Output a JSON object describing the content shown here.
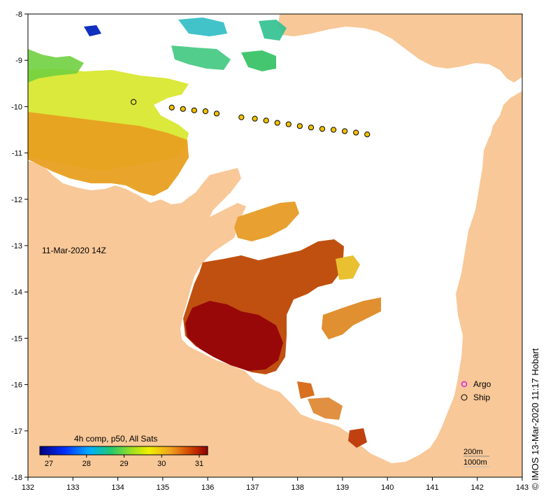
{
  "map": {
    "timestamp_label": "11-Mar-2020 14Z",
    "credit": "© IMOS 13-Mar-2020 11:17 Hobart",
    "lon_ticks": [
      "132",
      "133",
      "134",
      "135",
      "136",
      "137",
      "138",
      "139",
      "140",
      "141",
      "142",
      "143"
    ],
    "lat_ticks": [
      "-8",
      "-9",
      "-10",
      "-11",
      "-12",
      "-13",
      "-14",
      "-15",
      "-16",
      "-17",
      "-18"
    ],
    "lon_range": [
      132,
      143
    ],
    "lat_range": [
      -18,
      -8
    ]
  },
  "colorbar": {
    "title": "4h comp, p50, All Sats",
    "ticks": [
      "27",
      "28",
      "29",
      "30",
      "31"
    ]
  },
  "legend": {
    "argo_label": "Argo",
    "ship_label": "Ship",
    "argo_color": "#e020e0",
    "ship_color": "#f0c000"
  },
  "scale": {
    "contour_1": "200m",
    "contour_2": "1000m"
  },
  "colors": {
    "land": "#f8c898",
    "sea": "#ffffff"
  },
  "ship_track": [
    {
      "lon": 134.35,
      "lat": -9.9
    },
    {
      "lon": 135.2,
      "lat": -10.02
    },
    {
      "lon": 135.45,
      "lat": -10.05
    },
    {
      "lon": 135.7,
      "lat": -10.08
    },
    {
      "lon": 135.95,
      "lat": -10.1
    },
    {
      "lon": 136.2,
      "lat": -10.15
    },
    {
      "lon": 136.75,
      "lat": -10.23
    },
    {
      "lon": 137.05,
      "lat": -10.26
    },
    {
      "lon": 137.3,
      "lat": -10.3
    },
    {
      "lon": 137.55,
      "lat": -10.35
    },
    {
      "lon": 137.8,
      "lat": -10.38
    },
    {
      "lon": 138.05,
      "lat": -10.42
    },
    {
      "lon": 138.3,
      "lat": -10.45
    },
    {
      "lon": 138.55,
      "lat": -10.48
    },
    {
      "lon": 138.8,
      "lat": -10.5
    },
    {
      "lon": 139.05,
      "lat": -10.53
    },
    {
      "lon": 139.3,
      "lat": -10.56
    },
    {
      "lon": 139.55,
      "lat": -10.6
    }
  ]
}
